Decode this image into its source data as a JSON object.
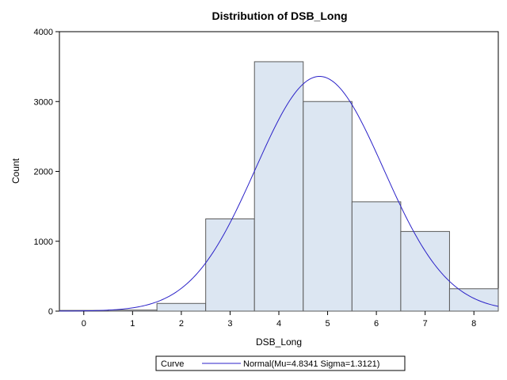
{
  "chart_data": {
    "type": "bar",
    "title": "Distribution of DSB_Long",
    "xlabel": "DSB_Long",
    "ylabel": "Count",
    "categories": [
      "0",
      "1",
      "2",
      "3",
      "4",
      "5",
      "6",
      "7",
      "8"
    ],
    "values": [
      10,
      15,
      110,
      1320,
      3570,
      3000,
      1565,
      1140,
      320
    ],
    "xlim": [
      -0.5,
      8.5
    ],
    "ylim": [
      0,
      4000
    ],
    "y_ticks": [
      "0",
      "1000",
      "2000",
      "3000",
      "4000"
    ],
    "grid": false,
    "bar_fill": "#dce6f2",
    "bar_stroke": "#5a5a5a",
    "curve": {
      "type": "normal",
      "mu": 4.8341,
      "sigma": 1.3121,
      "color": "#2b22c8",
      "peak": 3360
    },
    "legend": {
      "position": "bottom",
      "header": "Curve",
      "entry": "Normal(Mu=4.8341 Sigma=1.3121)"
    }
  }
}
